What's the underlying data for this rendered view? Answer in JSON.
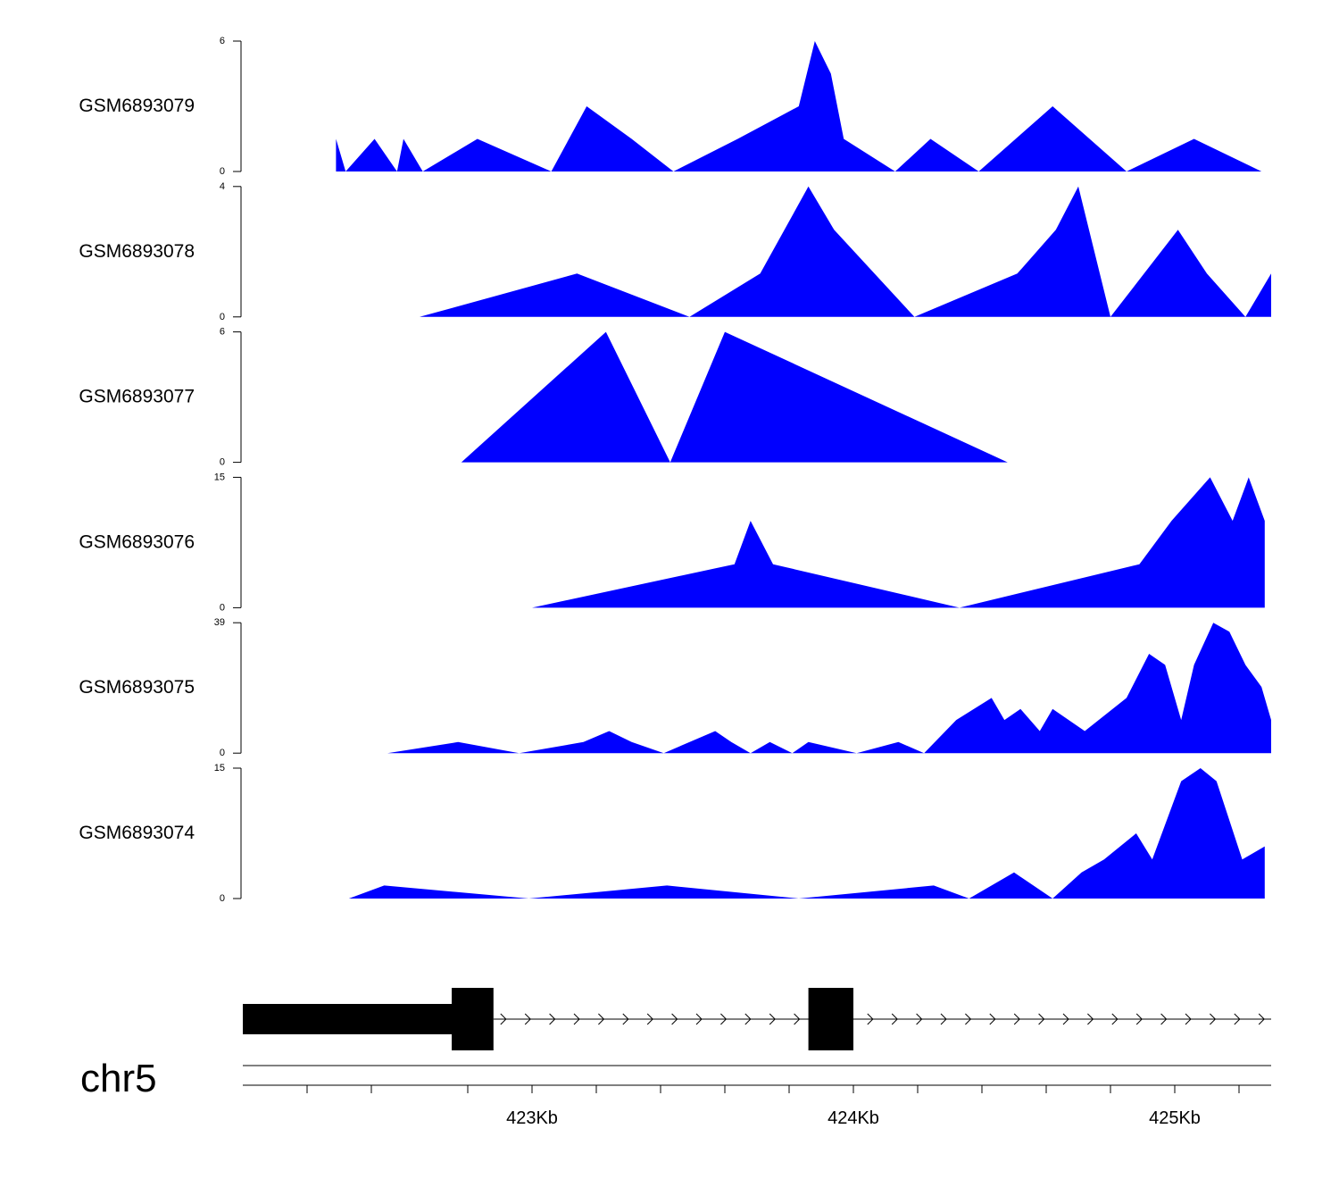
{
  "chromosome": "chr5",
  "colors": {
    "signal": "#0000FF",
    "gene": "#000000",
    "axis": "#000000"
  },
  "chart_data": {
    "type": "area",
    "x_unit": "Kb",
    "xlim": [
      422.1,
      425.3
    ],
    "x_ticks": [
      422.3,
      422.5,
      422.8,
      423.0,
      423.2,
      423.4,
      423.6,
      423.8,
      424.0,
      424.2,
      424.4,
      424.6,
      424.8,
      425.0,
      425.2
    ],
    "x_tick_labels": [
      {
        "x": 423.0,
        "label": "423Kb"
      },
      {
        "x": 424.0,
        "label": "424Kb"
      },
      {
        "x": 425.0,
        "label": "425Kb"
      }
    ],
    "series": [
      {
        "name": "GSM6893079",
        "ylim": [
          0,
          6
        ],
        "ytick_labels": [
          "0",
          "6"
        ],
        "x": [
          422.39,
          422.42,
          422.51,
          422.58,
          422.6,
          422.66,
          422.83,
          423.06,
          423.17,
          423.31,
          423.44,
          423.64,
          423.83,
          423.88,
          423.93,
          423.97,
          424.13,
          424.24,
          424.39,
          424.62,
          424.85,
          425.06,
          425.27
        ],
        "y": [
          1.5,
          0,
          1.5,
          0,
          1.5,
          0,
          1.5,
          0,
          3,
          1.5,
          0,
          1.5,
          3,
          6,
          4.5,
          1.5,
          0,
          1.5,
          0,
          3,
          0,
          1.5,
          0
        ]
      },
      {
        "name": "GSM6893078",
        "ylim": [
          0,
          4
        ],
        "ytick_labels": [
          "0",
          "4"
        ],
        "x": [
          422.65,
          423.14,
          423.49,
          423.71,
          423.86,
          423.94,
          424.19,
          424.51,
          424.63,
          424.7,
          424.8,
          425.01,
          425.1,
          425.22,
          425.3
        ],
        "y": [
          0,
          1.33,
          0,
          1.33,
          4,
          2.67,
          0,
          1.33,
          2.67,
          4,
          0,
          2.67,
          1.33,
          0,
          1.33
        ]
      },
      {
        "name": "GSM6893077",
        "ylim": [
          0,
          6
        ],
        "ytick_labels": [
          "0",
          "6"
        ],
        "x": [
          422.78,
          423.23,
          423.43,
          423.6,
          424.48
        ],
        "y": [
          0,
          6,
          0,
          6,
          0
        ]
      },
      {
        "name": "GSM6893076",
        "ylim": [
          0,
          15
        ],
        "ytick_labels": [
          "0",
          "15"
        ],
        "x": [
          423.0,
          423.63,
          423.68,
          423.75,
          424.33,
          424.89,
          424.99,
          425.11,
          425.18,
          425.23,
          425.28
        ],
        "y": [
          0,
          5,
          10,
          5,
          0,
          5,
          10,
          15,
          10,
          15,
          10
        ]
      },
      {
        "name": "GSM6893075",
        "ylim": [
          0,
          39
        ],
        "ytick_labels": [
          "0",
          "39"
        ],
        "x": [
          422.55,
          422.77,
          422.96,
          423.16,
          423.24,
          423.31,
          423.41,
          423.57,
          423.62,
          423.68,
          423.74,
          423.81,
          423.86,
          424.01,
          424.14,
          424.22,
          424.32,
          424.43,
          424.47,
          424.52,
          424.58,
          424.62,
          424.72,
          424.85,
          424.92,
          424.97,
          425.02,
          425.06,
          425.12,
          425.17,
          425.22,
          425.27,
          425.3
        ],
        "y": [
          0,
          3.3,
          0,
          3.3,
          6.6,
          3.3,
          0,
          6.6,
          3.3,
          0,
          3.3,
          0,
          3.3,
          0,
          3.3,
          0,
          9.9,
          16.5,
          9.9,
          13.2,
          6.6,
          13.2,
          6.6,
          16.5,
          29.7,
          26.4,
          9.9,
          26.4,
          39,
          36.3,
          26.4,
          19.8,
          9.9
        ]
      },
      {
        "name": "GSM6893074",
        "ylim": [
          0,
          15
        ],
        "ytick_labels": [
          "0",
          "15"
        ],
        "x": [
          422.43,
          422.54,
          422.99,
          423.42,
          423.83,
          424.25,
          424.36,
          424.5,
          424.56,
          424.62,
          424.71,
          424.78,
          424.88,
          424.93,
          425.02,
          425.08,
          425.13,
          425.21,
          425.28
        ],
        "y": [
          0,
          1.5,
          0,
          1.5,
          0,
          1.5,
          0,
          3,
          1.5,
          0,
          3,
          4.5,
          7.5,
          4.5,
          13.5,
          15,
          13.5,
          4.5,
          6
        ]
      }
    ],
    "gene_model": {
      "strand": "+",
      "thick_exons": [
        [
          422.75,
          422.88
        ],
        [
          423.86,
          424.0
        ]
      ],
      "utr": [
        [
          422.1,
          422.75
        ]
      ],
      "intron": [
        422.88,
        425.3
      ]
    }
  }
}
